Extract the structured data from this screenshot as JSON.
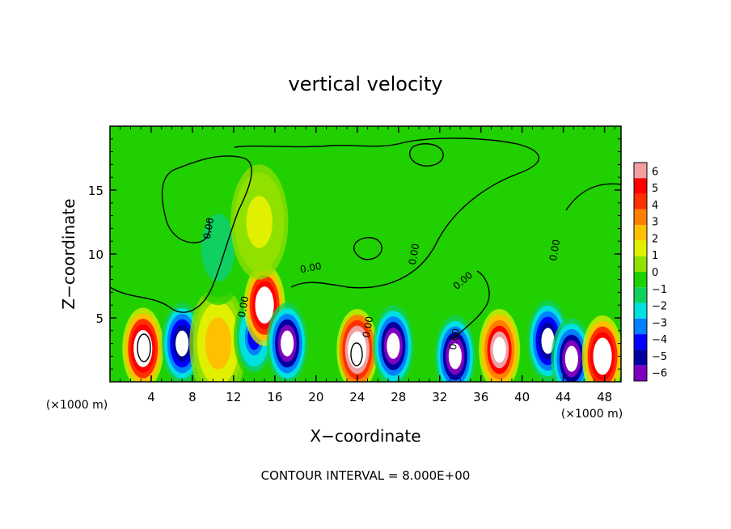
{
  "chart_data": {
    "type": "heatmap",
    "title": "vertical velocity",
    "xlabel": "X−coordinate",
    "ylabel": "Z−coordinate",
    "x_unit_left": "(×1000 m)",
    "x_unit_right": "(×1000 m)",
    "footer": "CONTOUR INTERVAL = 8.000E+00",
    "xlim": [
      0,
      49.6
    ],
    "ylim": [
      0,
      20
    ],
    "x_ticks": [
      4,
      8,
      12,
      16,
      20,
      24,
      28,
      32,
      36,
      40,
      44,
      48
    ],
    "y_ticks": [
      5,
      10,
      15
    ],
    "colorbar": {
      "min": -6,
      "max": 6,
      "tick_labels": [
        "6",
        "5",
        "4",
        "3",
        "2",
        "1",
        "0",
        "−1",
        "−2",
        "−3",
        "−4",
        "−5",
        "−6"
      ],
      "colors": [
        "#f0a0a0",
        "#ff0000",
        "#ff3000",
        "#ff8000",
        "#ffc000",
        "#e0f000",
        "#90e000",
        "#20d000",
        "#10d060",
        "#00e0e0",
        "#0080ff",
        "#0000ff",
        "#0000a0",
        "#8000c0"
      ]
    },
    "contour_labels": [
      "0.00",
      "0.00",
      "0.00",
      "0.00",
      "0.00",
      "0.00",
      "0.00",
      "0.00"
    ],
    "features": [
      {
        "x": 3.2,
        "z": 2.6,
        "w": 7.5
      },
      {
        "x": 7.0,
        "z": 3.0,
        "w": -6.5
      },
      {
        "x": 10.5,
        "z": 3.0,
        "w": 2.5
      },
      {
        "x": 14.0,
        "z": 3.5,
        "w": -4.0
      },
      {
        "x": 15.0,
        "z": 6.0,
        "w": 8.0
      },
      {
        "x": 17.2,
        "z": 3.0,
        "w": -7.0
      },
      {
        "x": 24.0,
        "z": 2.5,
        "w": 8.5
      },
      {
        "x": 27.5,
        "z": 2.8,
        "w": -7.0
      },
      {
        "x": 33.5,
        "z": 2.0,
        "w": -7.0
      },
      {
        "x": 37.8,
        "z": 2.5,
        "w": 7.0
      },
      {
        "x": 42.5,
        "z": 3.2,
        "w": -6.5
      },
      {
        "x": 44.8,
        "z": 1.8,
        "w": -7.0
      },
      {
        "x": 47.8,
        "z": 2.0,
        "w": 7.5
      },
      {
        "x": 10.5,
        "z": 10.5,
        "w": -1.8
      },
      {
        "x": 14.5,
        "z": 12.5,
        "w": 1.2
      }
    ]
  }
}
